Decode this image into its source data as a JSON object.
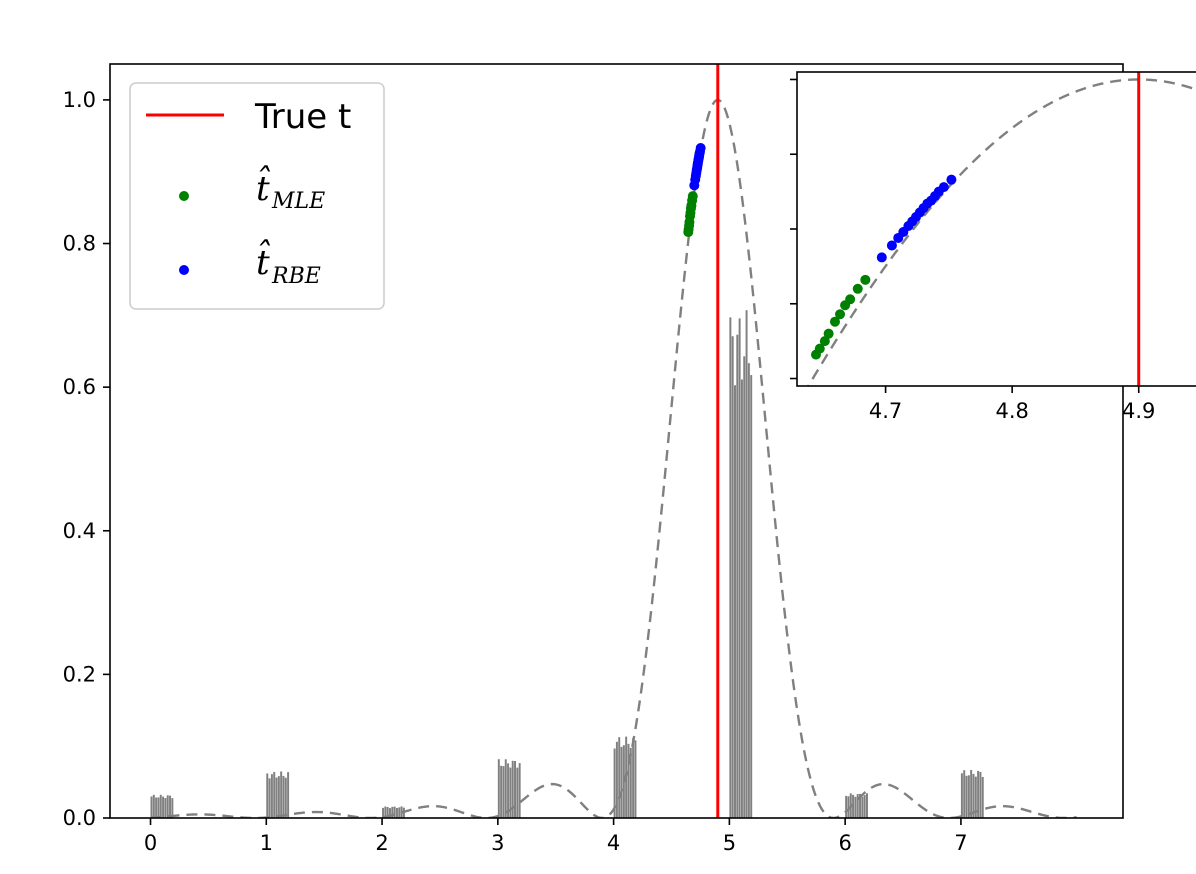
{
  "chart_data": [
    {
      "type": "line+bar+scatter",
      "title": "",
      "xlabel": "",
      "ylabel": "",
      "xlim": [
        -0.35,
        8.4
      ],
      "ylim": [
        0.0,
        1.05
      ],
      "x_ticks": [
        0,
        1,
        2,
        3,
        4,
        5,
        6,
        7
      ],
      "y_ticks": [
        0.0,
        0.2,
        0.4,
        0.6,
        0.8,
        1.0
      ],
      "x_tick_labels": [
        "0",
        "1",
        "2",
        "3",
        "4",
        "5",
        "6",
        "7"
      ],
      "y_tick_labels": [
        "0.0",
        "0.2",
        "0.4",
        "0.6",
        "0.8",
        "1.0"
      ],
      "grid": false,
      "legend_position": "top-left",
      "true_t": 4.9,
      "curve_peak": 4.9,
      "colors": {
        "true_line": "#ff0000",
        "mle": "#008000",
        "rbe": "#0000ff",
        "curve": "#808080",
        "bars": "#808080"
      },
      "legend": [
        {
          "key": "true",
          "label": "True t",
          "marker": "line",
          "color": "#ff0000"
        },
        {
          "key": "mle",
          "symbol": "t̂",
          "subscript": "MLE",
          "marker": "dot",
          "color": "#008000"
        },
        {
          "key": "rbe",
          "symbol": "t̂",
          "subscript": "RBE",
          "marker": "dot",
          "color": "#0000ff"
        }
      ],
      "histogram_groups": [
        {
          "start": 0.0,
          "end": 0.2,
          "height": 0.03
        },
        {
          "start": 1.0,
          "end": 1.2,
          "height": 0.06
        },
        {
          "start": 2.0,
          "end": 2.2,
          "height": 0.015
        },
        {
          "start": 3.0,
          "end": 3.2,
          "height": 0.076
        },
        {
          "start": 4.0,
          "end": 4.2,
          "height": 0.105
        },
        {
          "start": 5.0,
          "end": 5.2,
          "height": 0.655
        },
        {
          "start": 6.0,
          "end": 6.2,
          "height": 0.032
        },
        {
          "start": 7.0,
          "end": 7.2,
          "height": 0.062
        }
      ],
      "mle_points": [
        {
          "x": 4.645,
          "y": 0.816
        },
        {
          "x": 4.648,
          "y": 0.82
        },
        {
          "x": 4.652,
          "y": 0.825
        },
        {
          "x": 4.655,
          "y": 0.83
        },
        {
          "x": 4.66,
          "y": 0.838
        },
        {
          "x": 4.664,
          "y": 0.843
        },
        {
          "x": 4.668,
          "y": 0.849
        },
        {
          "x": 4.672,
          "y": 0.853
        },
        {
          "x": 4.678,
          "y": 0.86
        },
        {
          "x": 4.684,
          "y": 0.866
        }
      ],
      "rbe_points": [
        {
          "x": 4.697,
          "y": 0.881
        },
        {
          "x": 4.705,
          "y": 0.889
        },
        {
          "x": 4.71,
          "y": 0.894
        },
        {
          "x": 4.714,
          "y": 0.898
        },
        {
          "x": 4.718,
          "y": 0.902
        },
        {
          "x": 4.721,
          "y": 0.905
        },
        {
          "x": 4.724,
          "y": 0.908
        },
        {
          "x": 4.727,
          "y": 0.911
        },
        {
          "x": 4.73,
          "y": 0.914
        },
        {
          "x": 4.733,
          "y": 0.917
        },
        {
          "x": 4.736,
          "y": 0.919
        },
        {
          "x": 4.739,
          "y": 0.922
        },
        {
          "x": 4.742,
          "y": 0.925
        },
        {
          "x": 4.746,
          "y": 0.928
        },
        {
          "x": 4.752,
          "y": 0.933
        }
      ]
    },
    {
      "type": "line+scatter",
      "inset": true,
      "xlim": [
        4.63,
        4.95
      ],
      "ylim": [
        0.795,
        1.005
      ],
      "x_ticks": [
        4.7,
        4.8,
        4.9
      ],
      "x_tick_labels": [
        "4.7",
        "4.8",
        "4.9"
      ],
      "y_ticks": [
        0.8,
        0.85,
        0.9,
        0.95,
        1.0
      ],
      "y_tick_labels": [
        "",
        "",
        "",
        "",
        ""
      ]
    }
  ]
}
